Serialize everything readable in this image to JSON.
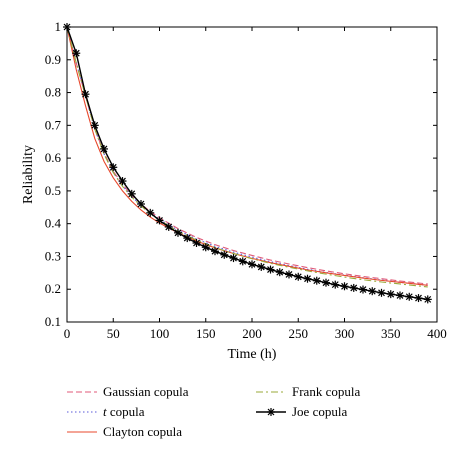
{
  "chart_data": {
    "type": "line",
    "xlabel": "Time (h)",
    "ylabel": "Reliability",
    "xlim": [
      0,
      400
    ],
    "ylim": [
      0.1,
      1.0
    ],
    "xticks": [
      0,
      50,
      100,
      150,
      200,
      250,
      300,
      350,
      400
    ],
    "yticks": [
      0.1,
      0.2,
      0.3,
      0.4,
      0.5,
      0.6,
      0.7,
      0.8,
      0.9,
      1
    ],
    "grid": false,
    "legend_position": "below",
    "series": [
      {
        "name": "Gaussian copula",
        "style": "dashed",
        "color": "#e05a78",
        "x": [
          0,
          10,
          20,
          30,
          40,
          50,
          60,
          70,
          80,
          90,
          100,
          120,
          140,
          160,
          180,
          200,
          220,
          240,
          260,
          280,
          300,
          320,
          340,
          360,
          380,
          390
        ],
        "y": [
          1.0,
          0.89,
          0.79,
          0.69,
          0.616,
          0.56,
          0.52,
          0.487,
          0.46,
          0.437,
          0.418,
          0.385,
          0.358,
          0.336,
          0.318,
          0.303,
          0.289,
          0.277,
          0.266,
          0.256,
          0.247,
          0.239,
          0.232,
          0.225,
          0.219,
          0.216
        ]
      },
      {
        "name": "t copula",
        "style": "dotted",
        "color": "#5a5ad8",
        "x": [
          0,
          10,
          20,
          30,
          40,
          50,
          60,
          70,
          80,
          90,
          100,
          120,
          140,
          160,
          180,
          200,
          220,
          240,
          260,
          280,
          300,
          320,
          340,
          360,
          380,
          390
        ],
        "y": [
          1.0,
          0.89,
          0.79,
          0.689,
          0.613,
          0.557,
          0.516,
          0.483,
          0.456,
          0.433,
          0.413,
          0.38,
          0.353,
          0.331,
          0.313,
          0.298,
          0.284,
          0.272,
          0.261,
          0.251,
          0.243,
          0.235,
          0.228,
          0.221,
          0.215,
          0.212
        ]
      },
      {
        "name": "Clayton copula",
        "style": "solid",
        "color": "#e8482c",
        "x": [
          0,
          10,
          20,
          30,
          40,
          50,
          60,
          70,
          80,
          90,
          100,
          120,
          140,
          160,
          180,
          200,
          220,
          240,
          260,
          280,
          300,
          320,
          340,
          360,
          380,
          390
        ],
        "y": [
          1.0,
          0.87,
          0.76,
          0.66,
          0.59,
          0.54,
          0.5,
          0.468,
          0.442,
          0.42,
          0.402,
          0.372,
          0.347,
          0.326,
          0.309,
          0.294,
          0.281,
          0.27,
          0.259,
          0.25,
          0.242,
          0.234,
          0.227,
          0.221,
          0.215,
          0.212
        ]
      },
      {
        "name": "Frank copula",
        "style": "dashdot",
        "color": "#9aaa3a",
        "x": [
          0,
          10,
          20,
          30,
          40,
          50,
          60,
          70,
          80,
          90,
          100,
          120,
          140,
          160,
          180,
          200,
          220,
          240,
          260,
          280,
          300,
          320,
          340,
          360,
          380,
          390
        ],
        "y": [
          1.0,
          0.89,
          0.79,
          0.689,
          0.612,
          0.556,
          0.514,
          0.481,
          0.454,
          0.431,
          0.411,
          0.377,
          0.35,
          0.327,
          0.309,
          0.293,
          0.279,
          0.267,
          0.256,
          0.246,
          0.237,
          0.229,
          0.222,
          0.216,
          0.21,
          0.207
        ]
      },
      {
        "name": "Joe copula",
        "style": "solid-star",
        "color": "#000000",
        "x": [
          0,
          10,
          20,
          30,
          40,
          50,
          60,
          70,
          80,
          90,
          100,
          110,
          120,
          130,
          140,
          150,
          160,
          170,
          180,
          190,
          200,
          210,
          220,
          230,
          240,
          250,
          260,
          270,
          280,
          290,
          300,
          310,
          320,
          330,
          340,
          350,
          360,
          370,
          380,
          390
        ],
        "y": [
          1.0,
          0.92,
          0.795,
          0.7,
          0.628,
          0.572,
          0.53,
          0.491,
          0.46,
          0.433,
          0.41,
          0.39,
          0.372,
          0.356,
          0.341,
          0.328,
          0.316,
          0.305,
          0.295,
          0.285,
          0.276,
          0.268,
          0.26,
          0.252,
          0.245,
          0.238,
          0.232,
          0.226,
          0.22,
          0.214,
          0.209,
          0.204,
          0.199,
          0.194,
          0.189,
          0.185,
          0.181,
          0.177,
          0.173,
          0.169
        ]
      }
    ]
  }
}
